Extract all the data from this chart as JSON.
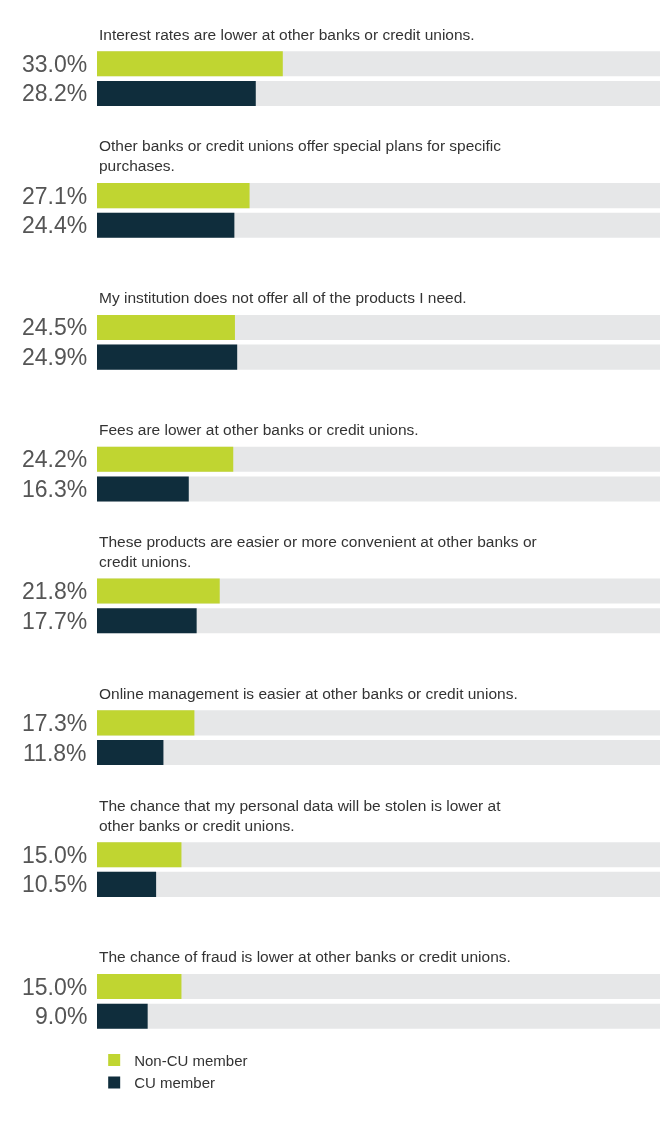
{
  "chart_data": {
    "type": "bar",
    "orientation": "horizontal",
    "categories": [
      "Interest rates are lower at other banks or credit unions.",
      "Other banks or credit unions offer special plans for specific purchases.",
      "My institution does not offer all of the products I need.",
      "Fees are lower at other banks or credit unions.",
      "These products are easier or more convenient at other banks or credit unions.",
      "Online management is easier at other banks or credit unions.",
      "The chance that my personal data will be stolen is lower at other banks or credit unions.",
      "The chance of fraud is lower at other banks or credit unions."
    ],
    "series": [
      {
        "name": "Non-CU member",
        "color": "#c0d531",
        "values": [
          33.0,
          27.1,
          24.5,
          24.2,
          21.8,
          17.3,
          15.0,
          15.0
        ],
        "value_labels": [
          "33.0%",
          "27.1%",
          "24.5%",
          "24.2%",
          "21.8%",
          "17.3%",
          "15.0%",
          "15.0%"
        ]
      },
      {
        "name": "CU member",
        "color": "#0f2d3c",
        "values": [
          28.2,
          24.4,
          24.9,
          16.3,
          17.7,
          11.8,
          10.5,
          9.0
        ],
        "value_labels": [
          "28.2%",
          "24.4%",
          "24.9%",
          "16.3%",
          "17.7%",
          "11.8%",
          "10.5%",
          "9.0%"
        ]
      }
    ],
    "xlim": [
      0,
      100
    ],
    "tick_labels": false,
    "grid": false,
    "legend": "bottom left"
  }
}
